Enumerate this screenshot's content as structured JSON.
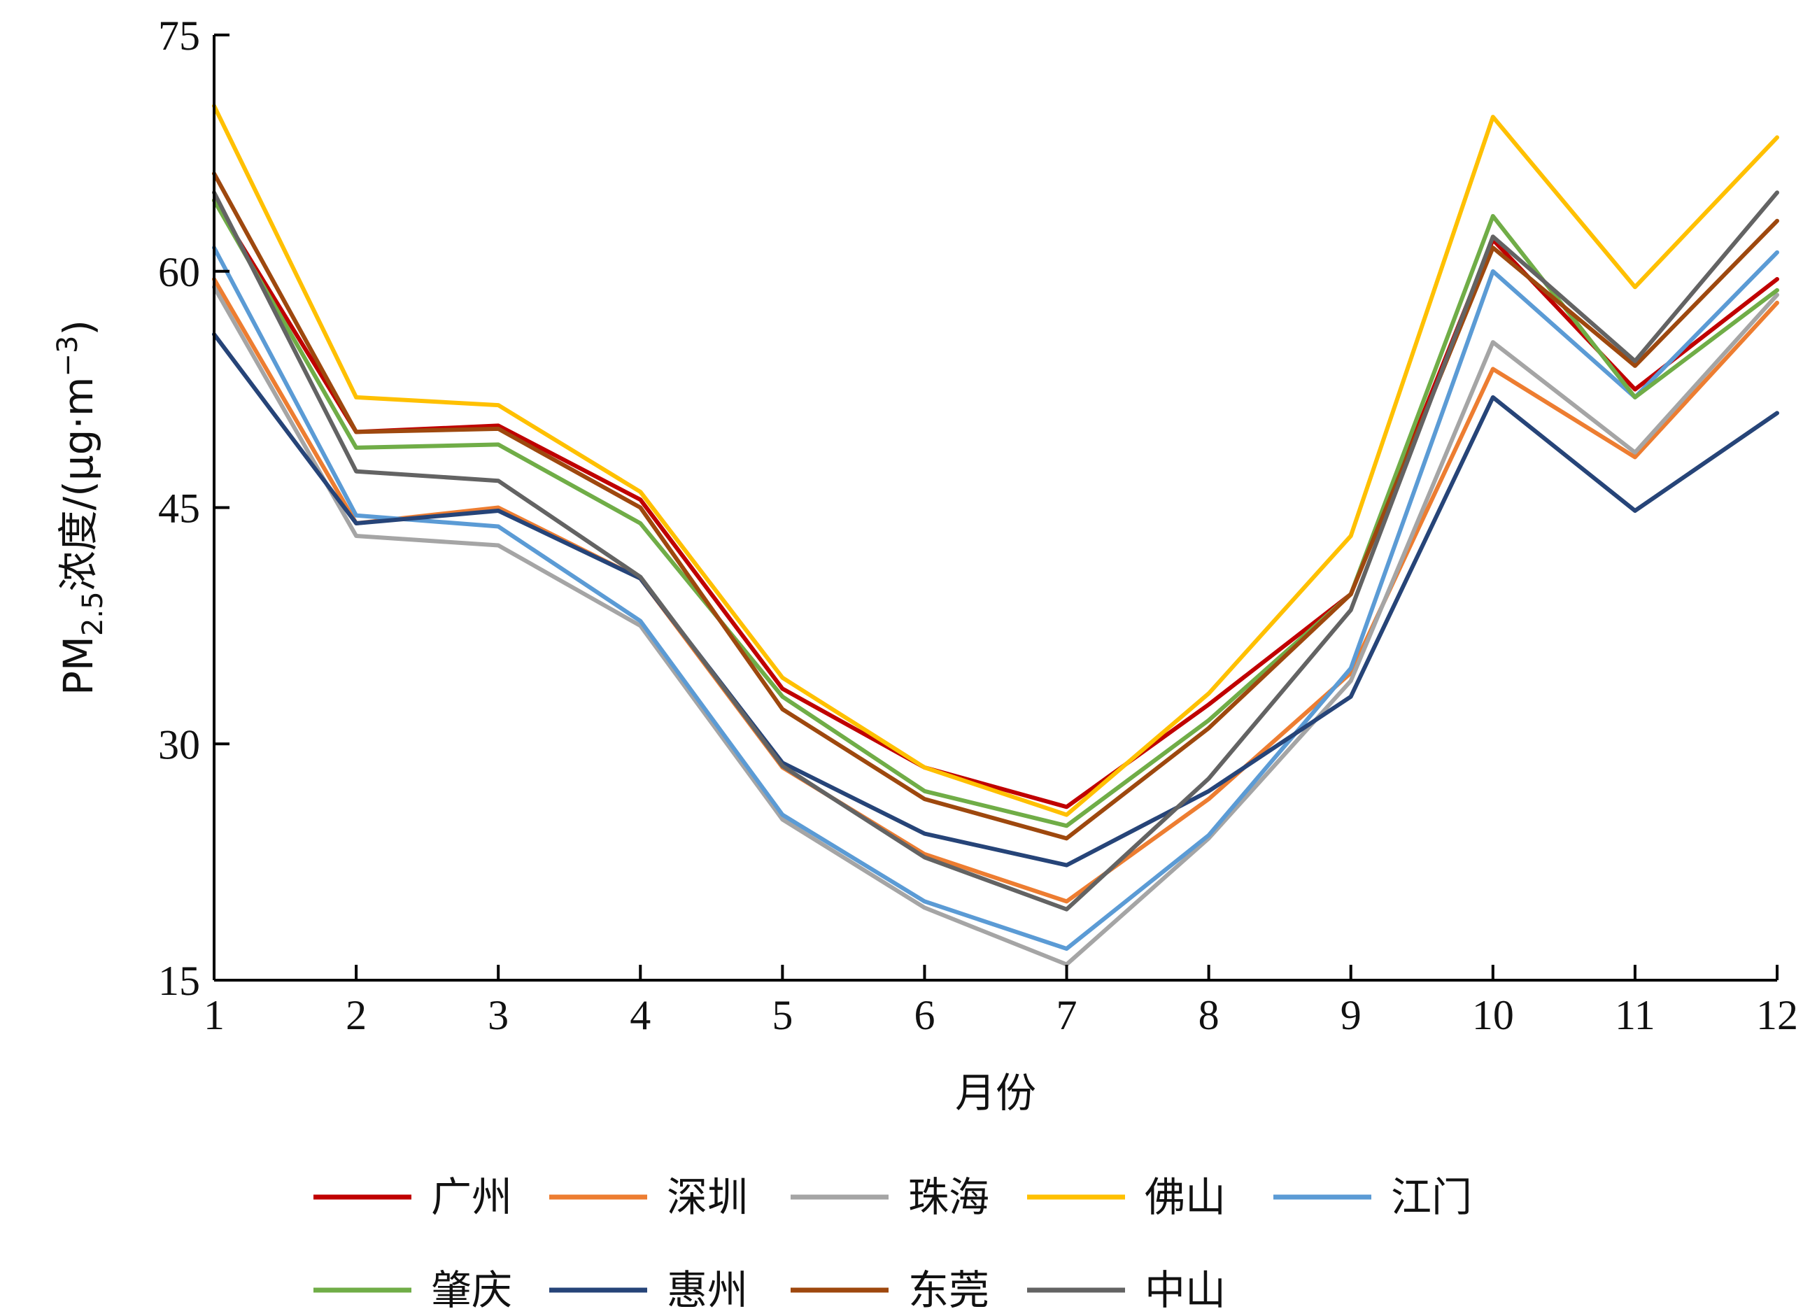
{
  "chart_data": {
    "type": "line",
    "title": "",
    "xlabel": "月份",
    "ylabel": {
      "prefix": "PM",
      "subscript": "2.5",
      "suffix": "浓度/(μg·m",
      "superscript": "−3",
      "close": ")"
    },
    "x": [
      1,
      2,
      3,
      4,
      5,
      6,
      7,
      8,
      9,
      10,
      11,
      12
    ],
    "ylim": [
      15,
      75
    ],
    "yticks": [
      15,
      30,
      45,
      60,
      75
    ],
    "grid": false,
    "legend_position": "bottom",
    "series": [
      {
        "name": "广州",
        "color": "#C00000",
        "values": [
          64.5,
          49.8,
          50.2,
          45.5,
          33.5,
          28.5,
          26.0,
          32.5,
          39.5,
          62.0,
          52.5,
          59.5
        ]
      },
      {
        "name": "深圳",
        "color": "#ED7D31",
        "values": [
          59.5,
          44.0,
          45.0,
          40.5,
          28.5,
          23.0,
          20.0,
          26.5,
          34.5,
          53.8,
          48.2,
          58.0
        ]
      },
      {
        "name": "珠海",
        "color": "#A5A5A5",
        "values": [
          59.0,
          43.2,
          42.6,
          37.5,
          25.2,
          19.6,
          16.0,
          24.0,
          34.0,
          55.5,
          48.5,
          58.5
        ]
      },
      {
        "name": "佛山",
        "color": "#FFC000",
        "values": [
          70.5,
          52.0,
          51.5,
          46.0,
          34.2,
          28.5,
          25.5,
          33.2,
          43.2,
          69.8,
          59.0,
          68.5
        ]
      },
      {
        "name": "江门",
        "color": "#5B9BD5",
        "values": [
          61.5,
          44.5,
          43.8,
          37.8,
          25.5,
          20.0,
          17.0,
          24.2,
          34.8,
          60.0,
          52.0,
          61.2
        ]
      },
      {
        "name": "肇庆",
        "color": "#70AD47",
        "values": [
          64.5,
          48.8,
          49.0,
          44.0,
          33.0,
          27.0,
          24.8,
          31.5,
          39.5,
          63.5,
          52.0,
          58.8
        ]
      },
      {
        "name": "惠州",
        "color": "#264478",
        "values": [
          56.0,
          44.0,
          44.8,
          40.5,
          28.8,
          24.3,
          22.3,
          27.0,
          33.0,
          52.0,
          44.8,
          51.0
        ]
      },
      {
        "name": "东莞",
        "color": "#9E480E",
        "values": [
          66.2,
          49.8,
          50.0,
          45.0,
          32.2,
          26.5,
          24.0,
          31.0,
          39.5,
          61.5,
          54.0,
          63.2
        ]
      },
      {
        "name": "中山",
        "color": "#636363",
        "values": [
          65.0,
          47.3,
          46.7,
          40.6,
          28.6,
          22.8,
          19.5,
          27.8,
          38.5,
          62.2,
          54.3,
          65.0
        ]
      }
    ]
  }
}
